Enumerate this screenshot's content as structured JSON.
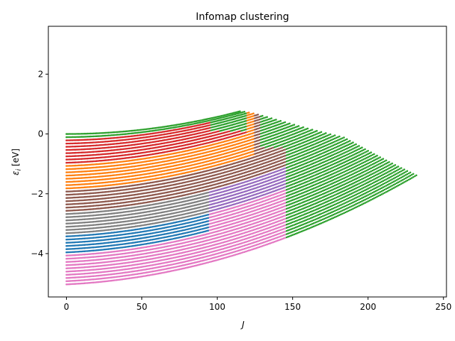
{
  "chart_data": {
    "type": "scatter",
    "title": "Infomap clustering",
    "xlabel": "J",
    "ylabel_prefix": "ε",
    "ylabel_sub": "i",
    "ylabel_unit": " [eV]",
    "xlim": [
      -12,
      252
    ],
    "ylim": [
      -5.45,
      3.6
    ],
    "xticks": [
      0,
      50,
      100,
      150,
      200,
      250
    ],
    "yticks": [
      -4,
      -2,
      0,
      2
    ],
    "ytick_labels": [
      "−4",
      "−2",
      "0",
      "2"
    ],
    "grid": false,
    "legend": "none",
    "model": {
      "rot_constant": 5.73e-05,
      "band_spacing_J0": 0.107,
      "band_curvature_gain": 0.005
    },
    "bands": {
      "count": 48,
      "max_J": 240,
      "point_step_J": 1,
      "extent_J": [
        115,
        118,
        121,
        124,
        127,
        130,
        133,
        136,
        139,
        142,
        145,
        148,
        151,
        154,
        157,
        160,
        163,
        166,
        169,
        172,
        175,
        178,
        181,
        184,
        186,
        188,
        190,
        192,
        194,
        196,
        198,
        200,
        202,
        204,
        206,
        208,
        210,
        212,
        214,
        216,
        218,
        220,
        222,
        224,
        226,
        228,
        230,
        232
      ]
    },
    "clusters": [
      {
        "name": "green",
        "color": "#2ca02c"
      },
      {
        "name": "red",
        "color": "#d62728"
      },
      {
        "name": "orange",
        "color": "#ff7f0e"
      },
      {
        "name": "brown",
        "color": "#8c564b"
      },
      {
        "name": "grey",
        "color": "#7f7f7f"
      },
      {
        "name": "purple",
        "color": "#9467bd"
      },
      {
        "name": "blue",
        "color": "#1f77b4"
      },
      {
        "name": "pink",
        "color": "#e377c2"
      }
    ]
  }
}
